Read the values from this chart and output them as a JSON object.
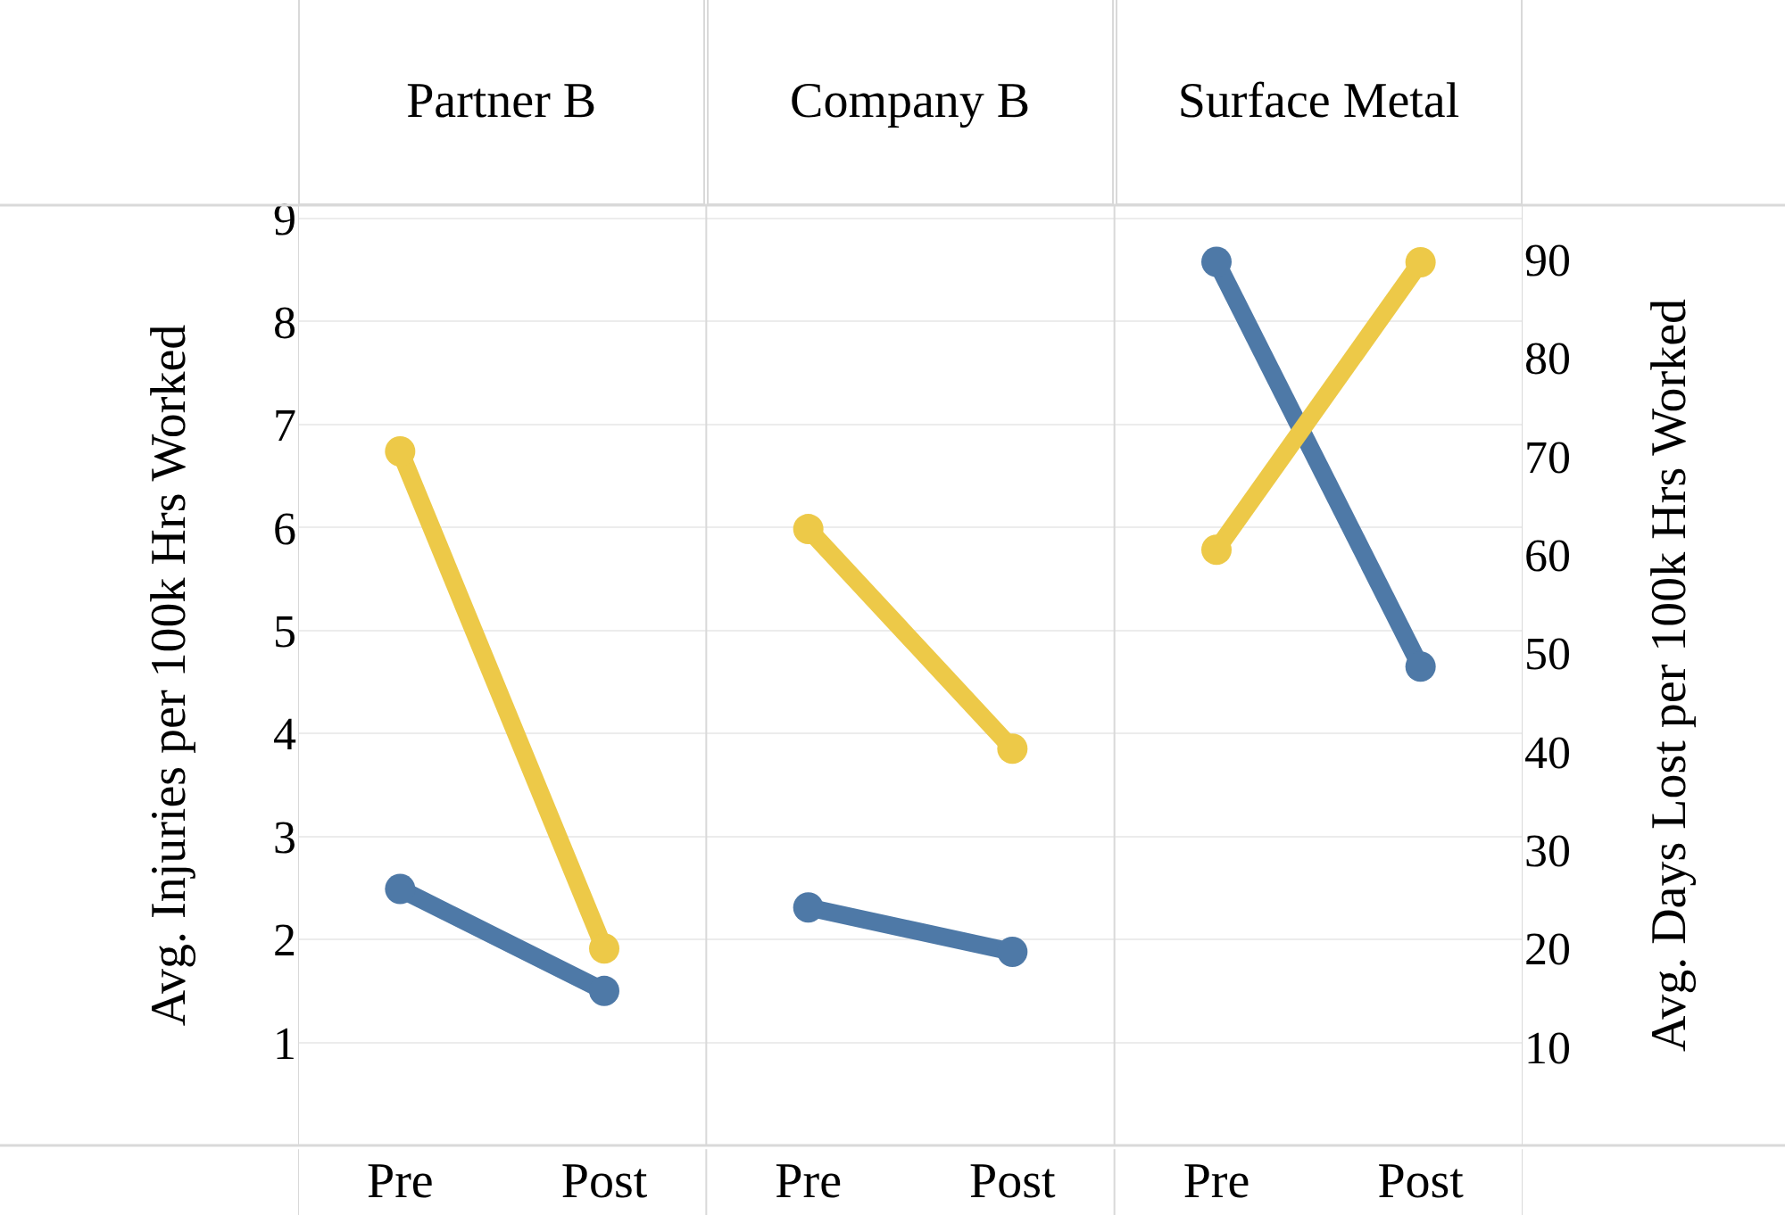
{
  "chart_data": {
    "type": "line",
    "categories": [
      "Pre",
      "Post",
      "Pre",
      "Post",
      "Pre",
      "Post"
    ],
    "annotations": [
      "Partner B",
      "Company B",
      "Surface Metal"
    ],
    "ylabel": "Avg. Injuries per 100k Hrs Worked",
    "y2label": "Avg. Days Lost per 100k Hrs Worked",
    "ylim": [
      0,
      9.13
    ],
    "yticks": [
      1,
      2,
      3,
      4,
      5,
      6,
      7,
      8,
      9
    ],
    "y2lim": [
      0,
      95.5
    ],
    "y2ticks": [
      10,
      20,
      30,
      40,
      50,
      60,
      70,
      80,
      90
    ],
    "grid": "y",
    "marker": "circle",
    "series": [
      {
        "color": "#4e79a7",
        "values": [
          2.49,
          1.5,
          null,
          null,
          null,
          null
        ]
      },
      {
        "color": "#edc948",
        "axis": "y2",
        "values": [
          70.5,
          20.0,
          null,
          null,
          null,
          null
        ]
      },
      {
        "color": "#4e79a7",
        "values": [
          null,
          null,
          2.31,
          1.88,
          null,
          null
        ]
      },
      {
        "color": "#edc948",
        "axis": "y2",
        "values": [
          null,
          null,
          62.6,
          40.3,
          null,
          null
        ]
      },
      {
        "color": "#4e79a7",
        "values": [
          null,
          null,
          null,
          null,
          8.58,
          4.65
        ]
      },
      {
        "color": "#edc948",
        "axis": "y2",
        "values": [
          null,
          null,
          null,
          null,
          60.5,
          89.7
        ]
      }
    ]
  }
}
